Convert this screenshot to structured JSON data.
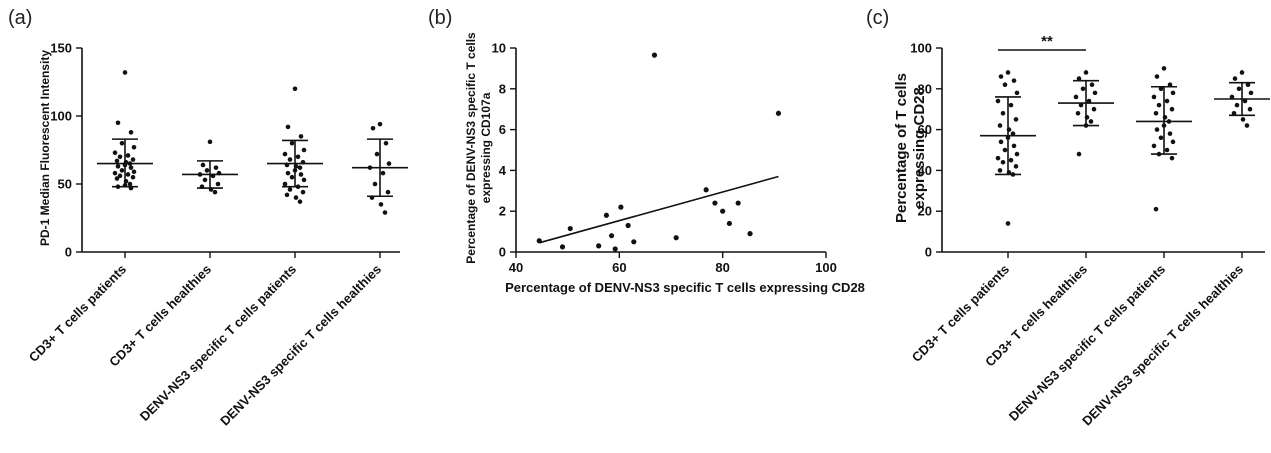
{
  "figure": {
    "panels": [
      {
        "label": "(a)",
        "chart_data": {
          "type": "scatter",
          "subtype": "dot-plot",
          "ylabel": "PD-1 Median Fluorescent Intensity",
          "xlabel": "",
          "ylim": [
            0,
            150
          ],
          "yticks": [
            0,
            50,
            100,
            150
          ],
          "categories": [
            "CD3+ T cells patients",
            "CD3+ T cells healthies",
            "DENV-NS3 specific T cells patients",
            "DENV-NS3 specific T cells healthies"
          ],
          "groups": [
            {
              "category": "CD3+ T cells patients",
              "mean": 65,
              "sd_low": 48,
              "sd_high": 83,
              "points": [
                132,
                95,
                88,
                80,
                77,
                73,
                71,
                70,
                68,
                67,
                66,
                65,
                64,
                63,
                62,
                60,
                59,
                58,
                57,
                56,
                55,
                54,
                52,
                50,
                49,
                48,
                47
              ]
            },
            {
              "category": "CD3+ T cells healthies",
              "mean": 57,
              "sd_low": 47,
              "sd_high": 67,
              "points": [
                81,
                64,
                62,
                60,
                58,
                57,
                56,
                53,
                50,
                48,
                46,
                44
              ]
            },
            {
              "category": "DENV-NS3 specific T cells patients",
              "mean": 65,
              "sd_low": 48,
              "sd_high": 82,
              "points": [
                120,
                92,
                85,
                80,
                75,
                72,
                70,
                68,
                66,
                64,
                63,
                62,
                60,
                58,
                57,
                55,
                53,
                50,
                48,
                46,
                44,
                42,
                40,
                37
              ]
            },
            {
              "category": "DENV-NS3 specific T cells healthies",
              "mean": 62,
              "sd_low": 41,
              "sd_high": 83,
              "points": [
                94,
                91,
                80,
                72,
                65,
                62,
                58,
                50,
                44,
                40,
                35,
                29
              ]
            }
          ]
        }
      },
      {
        "label": "(b)",
        "chart_data": {
          "type": "scatter",
          "xlabel": "Percentage of DENV-NS3 specific T cells expressing CD28",
          "ylabel_lines": [
            "Percentage of DENV-NS3 specific T cells",
            "expressing CD107a"
          ],
          "xlim": [
            40,
            100
          ],
          "ylim": [
            0,
            10
          ],
          "xticks": [
            40,
            60,
            80,
            100
          ],
          "yticks": [
            0,
            2,
            4,
            6,
            8,
            10
          ],
          "points": [
            {
              "x": 44.5,
              "y": 0.55
            },
            {
              "x": 49,
              "y": 0.25
            },
            {
              "x": 50.5,
              "y": 1.15
            },
            {
              "x": 56,
              "y": 0.3
            },
            {
              "x": 57.5,
              "y": 1.8
            },
            {
              "x": 58.5,
              "y": 0.8
            },
            {
              "x": 59.2,
              "y": 0.15
            },
            {
              "x": 60.3,
              "y": 2.2
            },
            {
              "x": 61.7,
              "y": 1.3
            },
            {
              "x": 62.8,
              "y": 0.5
            },
            {
              "x": 66.8,
              "y": 9.65
            },
            {
              "x": 71,
              "y": 0.7
            },
            {
              "x": 76.8,
              "y": 3.05
            },
            {
              "x": 78.5,
              "y": 2.4
            },
            {
              "x": 80,
              "y": 2.0
            },
            {
              "x": 81.3,
              "y": 1.4
            },
            {
              "x": 83,
              "y": 2.4
            },
            {
              "x": 85.3,
              "y": 0.9
            },
            {
              "x": 90.8,
              "y": 6.8
            }
          ],
          "regression_line": {
            "x": [
              44.5,
              90.8
            ],
            "y": [
              0.45,
              3.7
            ]
          }
        }
      },
      {
        "label": "(c)",
        "chart_data": {
          "type": "scatter",
          "subtype": "dot-plot",
          "ylabel_lines": [
            "Percentage of T cells",
            "expressing CD28"
          ],
          "xlabel": "",
          "ylim": [
            0,
            100
          ],
          "yticks": [
            0,
            20,
            40,
            60,
            80,
            100
          ],
          "categories": [
            "CD3+ T cells patients",
            "CD3+ T cells healthies",
            "DENV-NS3 specific T cells patients",
            "DENV-NS3 specific T cells healthies"
          ],
          "significance": {
            "from": 0,
            "to": 1,
            "label": "**",
            "level": 100
          },
          "groups": [
            {
              "category": "CD3+ T cells patients",
              "mean": 57,
              "sd_low": 38,
              "sd_high": 76,
              "points": [
                88,
                86,
                84,
                82,
                78,
                74,
                72,
                68,
                65,
                62,
                60,
                58,
                56,
                54,
                52,
                50,
                48,
                46,
                45,
                44,
                42,
                40,
                39,
                38,
                14
              ]
            },
            {
              "category": "CD3+ T cells healthies",
              "mean": 73,
              "sd_low": 62,
              "sd_high": 84,
              "points": [
                88,
                85,
                82,
                80,
                78,
                76,
                74,
                72,
                70,
                68,
                66,
                64,
                62,
                48
              ]
            },
            {
              "category": "DENV-NS3 specific T cells patients",
              "mean": 64,
              "sd_low": 48,
              "sd_high": 81,
              "points": [
                90,
                86,
                82,
                80,
                78,
                76,
                74,
                72,
                70,
                68,
                66,
                64,
                62,
                60,
                58,
                56,
                54,
                52,
                50,
                48,
                46,
                21
              ]
            },
            {
              "category": "DENV-NS3 specific T cells healthies",
              "mean": 75,
              "sd_low": 67,
              "sd_high": 83,
              "points": [
                88,
                85,
                82,
                80,
                78,
                76,
                74,
                72,
                70,
                68,
                65,
                62
              ]
            }
          ]
        }
      }
    ]
  }
}
